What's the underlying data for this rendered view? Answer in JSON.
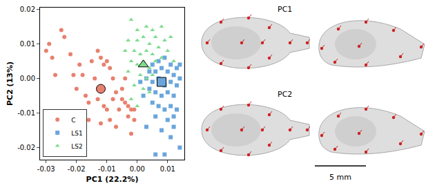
{
  "chart_data": {
    "type": "scatter",
    "x_label": "PC1 (22.2%)",
    "y_label": "PC2 (13%)",
    "xlim": [
      -0.032,
      0.0155
    ],
    "ylim": [
      -0.0235,
      0.0205
    ],
    "xticks": [
      -0.03,
      -0.02,
      -0.01,
      {
        "value": 0,
        "label": "0.00"
      },
      0.01
    ],
    "yticks": [
      -0.02,
      -0.01,
      {
        "value": 0,
        "label": "0.00"
      },
      0.01,
      0.02
    ],
    "grid": false,
    "legend": "lower left",
    "series": [
      {
        "name": "C",
        "color": "#e8806f",
        "marker": "circle",
        "mean": [
          -0.012,
          -0.003
        ],
        "x": [
          -0.029,
          -0.03,
          -0.028,
          -0.027,
          -0.025,
          -0.024,
          -0.022,
          -0.021,
          -0.019,
          -0.018,
          -0.02,
          -0.015,
          -0.013,
          -0.014,
          -0.012,
          -0.011,
          -0.01,
          -0.009,
          -0.008,
          -0.017,
          -0.016,
          -0.013,
          -0.011,
          -0.01,
          -0.008,
          -0.007,
          -0.005,
          -0.004,
          -0.006,
          -0.003,
          -0.002,
          -0.001,
          -0.003,
          -0.001,
          -0.005,
          -0.004,
          -0.009,
          -0.012,
          -0.007,
          -0.002,
          -0.016
        ],
        "y": [
          0.01,
          0.008,
          0.006,
          0.001,
          0.014,
          0.012,
          0.007,
          0.001,
          0.004,
          0.001,
          -0.003,
          0.005,
          0.008,
          0.0,
          0.006,
          0.004,
          0.005,
          0.003,
          0.0,
          -0.005,
          -0.007,
          -0.006,
          -0.008,
          -0.009,
          -0.006,
          -0.004,
          -0.006,
          -0.007,
          -0.009,
          -0.008,
          -0.009,
          -0.009,
          -0.011,
          -0.012,
          -0.003,
          0.0,
          -0.012,
          -0.013,
          -0.014,
          -0.016,
          -0.012
        ]
      },
      {
        "name": "LS1",
        "color": "#6aa6dc",
        "marker": "square",
        "mean": [
          0.008,
          -0.001
        ],
        "x": [
          0.005,
          0.007,
          0.009,
          0.011,
          0.013,
          0.004,
          0.006,
          0.008,
          0.01,
          0.012,
          0.014,
          0.003,
          0.005,
          0.007,
          0.009,
          0.011,
          0.013,
          0.004,
          0.006,
          0.008,
          0.01,
          0.012,
          0.002,
          0.005,
          0.007,
          0.009,
          0.011,
          0.013,
          0.006,
          0.01,
          0.012,
          0.003,
          0.008,
          0.011,
          0.006,
          0.009,
          0.014,
          0.012,
          0.014,
          0.001
        ],
        "y": [
          0.004,
          0.005,
          0.006,
          0.004,
          0.003,
          0.002,
          0.002,
          0.003,
          0.002,
          0.001,
          0.0,
          0.0,
          -0.001,
          0.0,
          -0.002,
          -0.001,
          -0.002,
          -0.003,
          -0.004,
          -0.005,
          -0.004,
          -0.005,
          -0.005,
          -0.007,
          -0.008,
          -0.009,
          -0.008,
          -0.009,
          -0.011,
          -0.012,
          -0.011,
          -0.014,
          -0.015,
          -0.017,
          -0.022,
          -0.022,
          -0.02,
          -0.014,
          0.004,
          -0.001
        ]
      },
      {
        "name": "LS2",
        "color": "#7fdb8e",
        "marker": "triangle-up",
        "mean": [
          0.002,
          0.004
        ],
        "x": [
          -0.002,
          0.0,
          0.003,
          0.005,
          0.008,
          -0.003,
          0.0,
          0.002,
          0.004,
          0.006,
          0.009,
          -0.004,
          -0.001,
          0.001,
          0.003,
          0.005,
          0.007,
          0.01,
          -0.002,
          0.0,
          0.002,
          0.004,
          0.006,
          0.008,
          -0.003,
          0.001,
          0.003,
          0.005,
          -0.001,
          0.002,
          0.004,
          -0.002,
          0.0,
          0.011,
          0.012
        ],
        "y": [
          0.017,
          0.014,
          0.015,
          0.014,
          0.015,
          0.011,
          0.011,
          0.012,
          0.01,
          0.012,
          0.011,
          0.008,
          0.008,
          0.007,
          0.008,
          0.007,
          0.009,
          0.008,
          0.005,
          0.004,
          0.005,
          0.003,
          0.005,
          0.006,
          0.002,
          0.001,
          0.0,
          0.001,
          -0.002,
          -0.003,
          -0.004,
          -0.006,
          -0.008,
          0.012,
          0.005
        ]
      }
    ]
  },
  "side_panel": {
    "labels": [
      "PC1",
      "PC2"
    ],
    "scale_bar": "5 mm"
  }
}
